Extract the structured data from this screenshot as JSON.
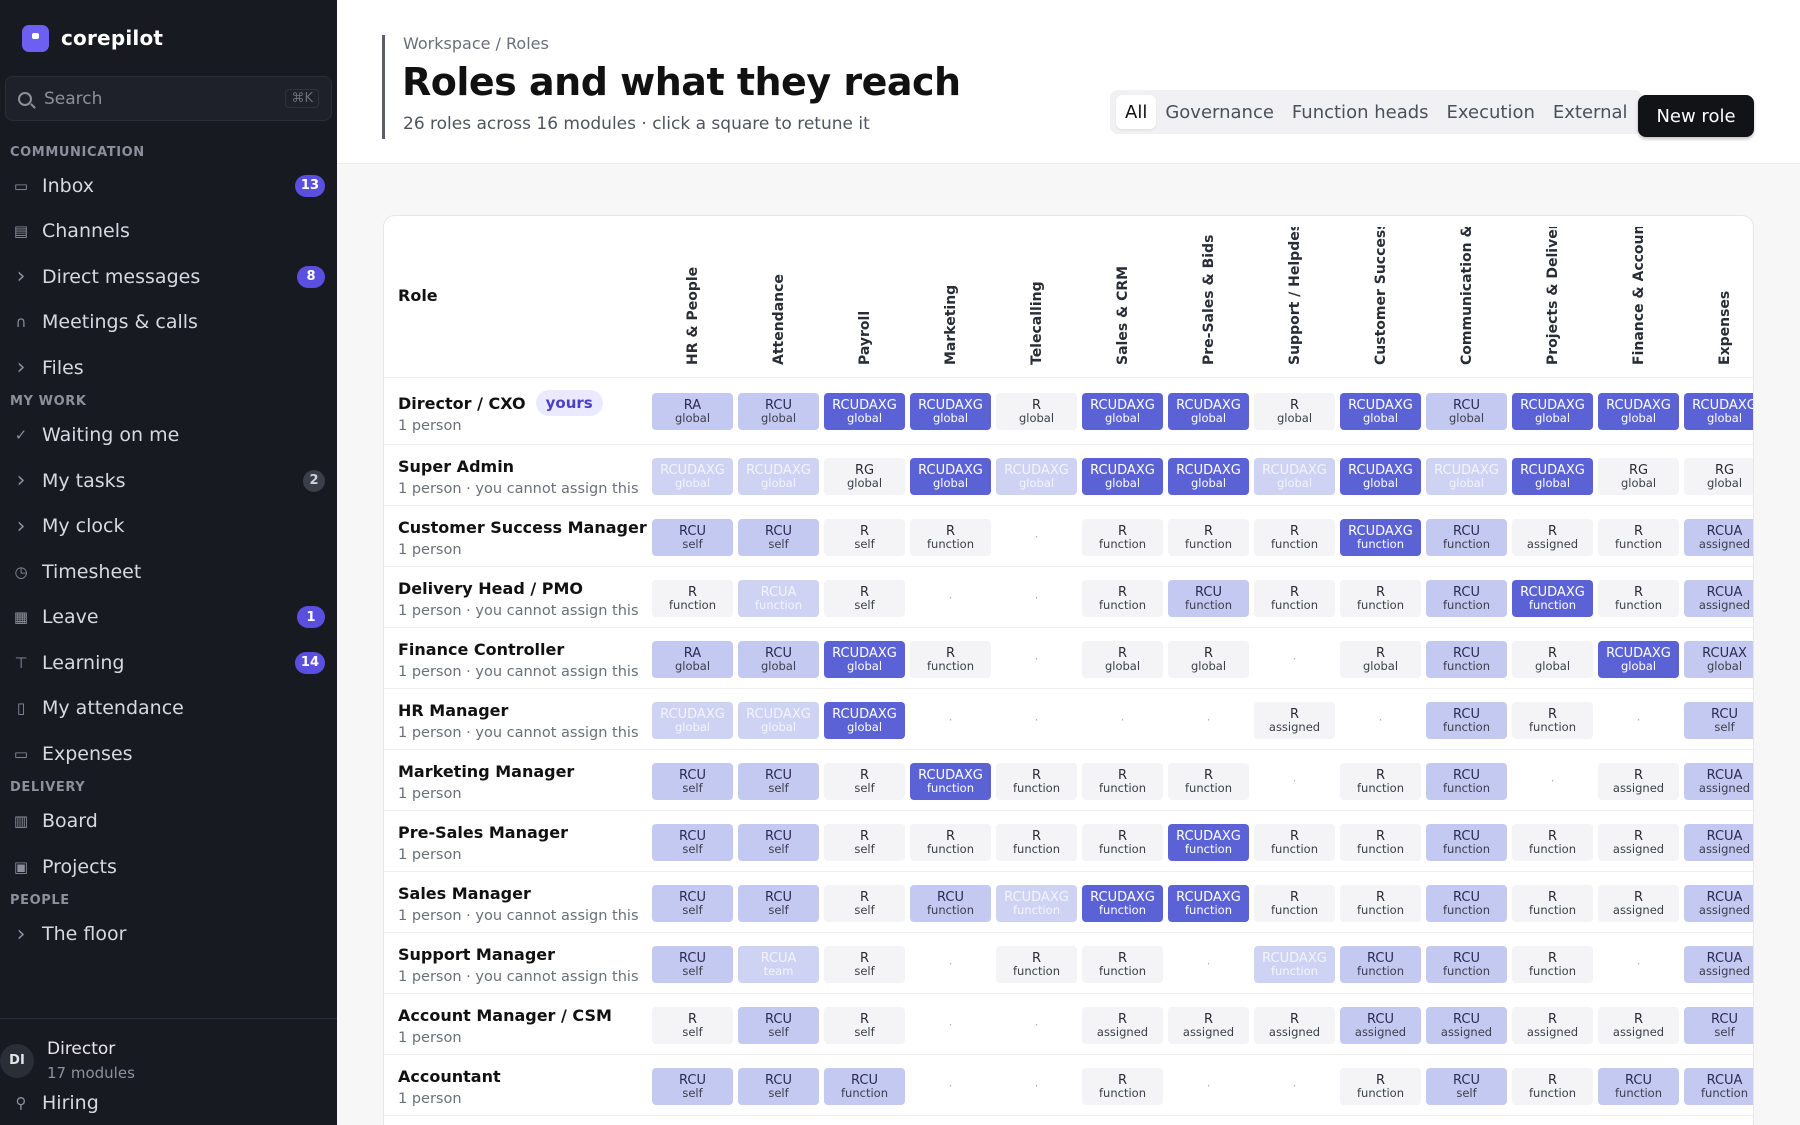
{
  "brand": {
    "name": "corepilot"
  },
  "search": {
    "placeholder": "Search",
    "shortcut": "⌘K"
  },
  "sidebar": {
    "sections": [
      {
        "title": "COMMUNICATION",
        "items": [
          {
            "label": "Inbox",
            "icon": "inbox-icon",
            "badge": "13",
            "badge_style": "accent",
            "chevron": false
          },
          {
            "label": "Channels",
            "icon": "chat-icon",
            "badge": "",
            "chevron": false
          },
          {
            "label": "Direct messages",
            "icon": "chevron-right-icon",
            "badge": "8",
            "badge_style": "accent",
            "chevron": true
          },
          {
            "label": "Meetings & calls",
            "icon": "headphones-icon",
            "badge": "",
            "chevron": false
          },
          {
            "label": "Files",
            "icon": "chevron-right-icon",
            "badge": "",
            "chevron": true
          }
        ]
      },
      {
        "title": "MY WORK",
        "items": [
          {
            "label": "Waiting on me",
            "icon": "check-icon",
            "badge": "",
            "chevron": false
          },
          {
            "label": "My tasks",
            "icon": "chevron-right-icon",
            "badge": "2",
            "badge_style": "grey",
            "chevron": true
          },
          {
            "label": "My clock",
            "icon": "chevron-right-icon",
            "badge": "",
            "chevron": true
          },
          {
            "label": "Timesheet",
            "icon": "clock-icon",
            "badge": "",
            "chevron": false
          },
          {
            "label": "Leave",
            "icon": "calendar-icon",
            "badge": "1",
            "badge_style": "accent",
            "chevron": false
          },
          {
            "label": "Learning",
            "icon": "learning-icon",
            "badge": "14",
            "badge_style": "accent",
            "chevron": false
          },
          {
            "label": "My attendance",
            "icon": "phone-icon",
            "badge": "",
            "chevron": false
          },
          {
            "label": "Expenses",
            "icon": "receipt-icon",
            "badge": "",
            "chevron": false
          }
        ]
      },
      {
        "title": "DELIVERY",
        "items": [
          {
            "label": "Board",
            "icon": "board-icon",
            "badge": "",
            "chevron": false
          },
          {
            "label": "Projects",
            "icon": "briefcase-icon",
            "badge": "",
            "chevron": false
          }
        ]
      },
      {
        "title": "PEOPLE",
        "items": [
          {
            "label": "The floor",
            "icon": "chevron-right-icon",
            "badge": "",
            "chevron": true
          }
        ]
      }
    ],
    "profile": {
      "initials": "DI",
      "name": "Director",
      "sub": "17 modules"
    },
    "extra_item": {
      "label": "Hiring",
      "icon": "user-plus-icon"
    }
  },
  "header": {
    "breadcrumb": "Workspace / Roles",
    "title": "Roles and what they reach",
    "subtitle": "26 roles across 16 modules · click a square to retune it",
    "filters": [
      "All",
      "Governance",
      "Function heads",
      "Execution",
      "External"
    ],
    "active_filter": 0,
    "new_role_label": "New role"
  },
  "table": {
    "role_header": "Role",
    "modules": [
      "HR & People",
      "Attendance",
      "Payroll",
      "Marketing",
      "Telecalling",
      "Sales & CRM",
      "Pre-Sales & Bids",
      "Support / Helpdesk",
      "Customer Success",
      "Communication & C",
      "Projects & Delivery",
      "Finance & Accountir",
      "Expenses"
    ],
    "rows": [
      {
        "name": "Director / CXO",
        "tag": "yours",
        "sub": "1 person",
        "cells": [
          [
            "RA",
            "global",
            1
          ],
          [
            "RCU",
            "global",
            1
          ],
          [
            "RCUDAXG",
            "global",
            2
          ],
          [
            "RCUDAXG",
            "global",
            2
          ],
          [
            "R",
            "global",
            0
          ],
          [
            "RCUDAXG",
            "global",
            2
          ],
          [
            "RCUDAXG",
            "global",
            2
          ],
          [
            "R",
            "global",
            0
          ],
          [
            "RCUDAXG",
            "global",
            2
          ],
          [
            "RCU",
            "global",
            1
          ],
          [
            "RCUDAXG",
            "global",
            2
          ],
          [
            "RCUDAXG",
            "global",
            2
          ],
          [
            "RCUDAXG",
            "global",
            2
          ]
        ]
      },
      {
        "name": "Super Admin",
        "tag": "",
        "sub": "1 person · you cannot assign this",
        "cells": [
          [
            "RCUDAXG",
            "global",
            3
          ],
          [
            "RCUDAXG",
            "global",
            3
          ],
          [
            "RG",
            "global",
            0
          ],
          [
            "RCUDAXG",
            "global",
            2
          ],
          [
            "RCUDAXG",
            "global",
            3
          ],
          [
            "RCUDAXG",
            "global",
            2
          ],
          [
            "RCUDAXG",
            "global",
            2
          ],
          [
            "RCUDAXG",
            "global",
            3
          ],
          [
            "RCUDAXG",
            "global",
            2
          ],
          [
            "RCUDAXG",
            "global",
            3
          ],
          [
            "RCUDAXG",
            "global",
            2
          ],
          [
            "RG",
            "global",
            0
          ],
          [
            "RG",
            "global",
            0
          ]
        ]
      },
      {
        "name": "Customer Success Manager",
        "tag": "",
        "sub": "1 person",
        "cells": [
          [
            "RCU",
            "self",
            1
          ],
          [
            "RCU",
            "self",
            1
          ],
          [
            "R",
            "self",
            0
          ],
          [
            "R",
            "function",
            0
          ],
          [
            "",
            "",
            -1
          ],
          [
            "R",
            "function",
            0
          ],
          [
            "R",
            "function",
            0
          ],
          [
            "R",
            "function",
            0
          ],
          [
            "RCUDAXG",
            "function",
            2
          ],
          [
            "RCU",
            "function",
            1
          ],
          [
            "R",
            "assigned",
            0
          ],
          [
            "R",
            "function",
            0
          ],
          [
            "RCUA",
            "assigned",
            1
          ]
        ]
      },
      {
        "name": "Delivery Head / PMO",
        "tag": "",
        "sub": "1 person · you cannot assign this",
        "cells": [
          [
            "R",
            "function",
            0
          ],
          [
            "RCUA",
            "function",
            3
          ],
          [
            "R",
            "self",
            0
          ],
          [
            "",
            "",
            -1
          ],
          [
            "",
            "",
            -1
          ],
          [
            "R",
            "function",
            0
          ],
          [
            "RCU",
            "function",
            1
          ],
          [
            "R",
            "function",
            0
          ],
          [
            "R",
            "function",
            0
          ],
          [
            "RCU",
            "function",
            1
          ],
          [
            "RCUDAXG",
            "function",
            2
          ],
          [
            "R",
            "function",
            0
          ],
          [
            "RCUA",
            "assigned",
            1
          ]
        ]
      },
      {
        "name": "Finance Controller",
        "tag": "",
        "sub": "1 person · you cannot assign this",
        "cells": [
          [
            "RA",
            "global",
            1
          ],
          [
            "RCU",
            "global",
            1
          ],
          [
            "RCUDAXG",
            "global",
            2
          ],
          [
            "R",
            "function",
            0
          ],
          [
            "",
            "",
            -1
          ],
          [
            "R",
            "global",
            0
          ],
          [
            "R",
            "global",
            0
          ],
          [
            "",
            "",
            -1
          ],
          [
            "R",
            "global",
            0
          ],
          [
            "RCU",
            "function",
            1
          ],
          [
            "R",
            "global",
            0
          ],
          [
            "RCUDAXG",
            "global",
            2
          ],
          [
            "RCUAX",
            "global",
            1
          ]
        ]
      },
      {
        "name": "HR Manager",
        "tag": "",
        "sub": "1 person · you cannot assign this",
        "cells": [
          [
            "RCUDAXG",
            "global",
            3
          ],
          [
            "RCUDAXG",
            "global",
            3
          ],
          [
            "RCUDAXG",
            "global",
            2
          ],
          [
            "",
            "",
            -1
          ],
          [
            "",
            "",
            -1
          ],
          [
            "",
            "",
            -1
          ],
          [
            "",
            "",
            -1
          ],
          [
            "R",
            "assigned",
            0
          ],
          [
            "",
            "",
            -1
          ],
          [
            "RCU",
            "function",
            1
          ],
          [
            "R",
            "function",
            0
          ],
          [
            "",
            "",
            -1
          ],
          [
            "RCU",
            "self",
            1
          ]
        ]
      },
      {
        "name": "Marketing Manager",
        "tag": "",
        "sub": "1 person",
        "cells": [
          [
            "RCU",
            "self",
            1
          ],
          [
            "RCU",
            "self",
            1
          ],
          [
            "R",
            "self",
            0
          ],
          [
            "RCUDAXG",
            "function",
            2
          ],
          [
            "R",
            "function",
            0
          ],
          [
            "R",
            "function",
            0
          ],
          [
            "R",
            "function",
            0
          ],
          [
            "",
            "",
            -1
          ],
          [
            "R",
            "function",
            0
          ],
          [
            "RCU",
            "function",
            1
          ],
          [
            "",
            "",
            -1
          ],
          [
            "R",
            "assigned",
            0
          ],
          [
            "RCUA",
            "assigned",
            1
          ]
        ]
      },
      {
        "name": "Pre-Sales Manager",
        "tag": "",
        "sub": "1 person",
        "cells": [
          [
            "RCU",
            "self",
            1
          ],
          [
            "RCU",
            "self",
            1
          ],
          [
            "R",
            "self",
            0
          ],
          [
            "R",
            "function",
            0
          ],
          [
            "R",
            "function",
            0
          ],
          [
            "R",
            "function",
            0
          ],
          [
            "RCUDAXG",
            "function",
            2
          ],
          [
            "R",
            "function",
            0
          ],
          [
            "R",
            "function",
            0
          ],
          [
            "RCU",
            "function",
            1
          ],
          [
            "R",
            "function",
            0
          ],
          [
            "R",
            "assigned",
            0
          ],
          [
            "RCUA",
            "assigned",
            1
          ]
        ]
      },
      {
        "name": "Sales Manager",
        "tag": "",
        "sub": "1 person · you cannot assign this",
        "cells": [
          [
            "RCU",
            "self",
            1
          ],
          [
            "RCU",
            "self",
            1
          ],
          [
            "R",
            "self",
            0
          ],
          [
            "RCU",
            "function",
            1
          ],
          [
            "RCUDAXG",
            "function",
            3
          ],
          [
            "RCUDAXG",
            "function",
            2
          ],
          [
            "RCUDAXG",
            "function",
            2
          ],
          [
            "R",
            "function",
            0
          ],
          [
            "R",
            "function",
            0
          ],
          [
            "RCU",
            "function",
            1
          ],
          [
            "R",
            "function",
            0
          ],
          [
            "R",
            "assigned",
            0
          ],
          [
            "RCUA",
            "assigned",
            1
          ]
        ]
      },
      {
        "name": "Support Manager",
        "tag": "",
        "sub": "1 person · you cannot assign this",
        "cells": [
          [
            "RCU",
            "self",
            1
          ],
          [
            "RCUA",
            "team",
            3
          ],
          [
            "R",
            "self",
            0
          ],
          [
            "",
            "",
            -1
          ],
          [
            "R",
            "function",
            0
          ],
          [
            "R",
            "function",
            0
          ],
          [
            "",
            "",
            -1
          ],
          [
            "RCUDAXG",
            "function",
            3
          ],
          [
            "RCU",
            "function",
            1
          ],
          [
            "RCU",
            "function",
            1
          ],
          [
            "R",
            "function",
            0
          ],
          [
            "",
            "",
            -1
          ],
          [
            "RCUA",
            "assigned",
            1
          ]
        ]
      },
      {
        "name": "Account Manager / CSM",
        "tag": "",
        "sub": "1 person",
        "cells": [
          [
            "R",
            "self",
            0
          ],
          [
            "RCU",
            "self",
            1
          ],
          [
            "R",
            "self",
            0
          ],
          [
            "",
            "",
            -1
          ],
          [
            "",
            "",
            -1
          ],
          [
            "R",
            "assigned",
            0
          ],
          [
            "R",
            "assigned",
            0
          ],
          [
            "R",
            "assigned",
            0
          ],
          [
            "RCU",
            "assigned",
            1
          ],
          [
            "RCU",
            "assigned",
            1
          ],
          [
            "R",
            "assigned",
            0
          ],
          [
            "R",
            "assigned",
            0
          ],
          [
            "RCU",
            "self",
            1
          ]
        ]
      },
      {
        "name": "Accountant",
        "tag": "",
        "sub": "1 person",
        "cells": [
          [
            "RCU",
            "self",
            1
          ],
          [
            "RCU",
            "self",
            1
          ],
          [
            "RCU",
            "function",
            1
          ],
          [
            "",
            "",
            -1
          ],
          [
            "",
            "",
            -1
          ],
          [
            "R",
            "function",
            0
          ],
          [
            "",
            "",
            -1
          ],
          [
            "",
            "",
            -1
          ],
          [
            "R",
            "function",
            0
          ],
          [
            "RCU",
            "self",
            1
          ],
          [
            "R",
            "function",
            0
          ],
          [
            "RCU",
            "function",
            1
          ],
          [
            "RCUA",
            "function",
            1
          ]
        ]
      }
    ]
  },
  "colors": {
    "sidebar_bg": "#171a21",
    "accent": "#5a4fe0",
    "cell_strong": "#5b62d5",
    "cell_mid": "#c4c9f1"
  }
}
